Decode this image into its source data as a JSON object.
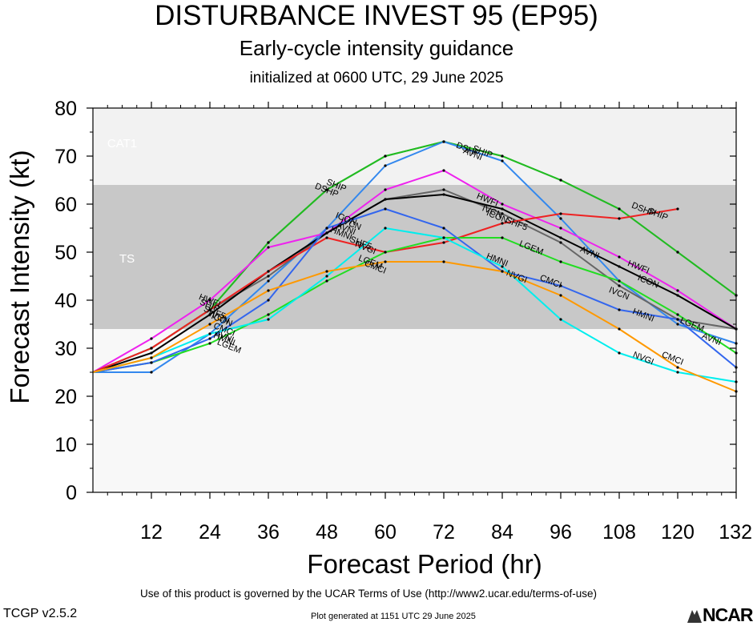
{
  "header": {
    "title": "DISTURBANCE INVEST 95 (EP95)",
    "subtitle": "Early-cycle intensity guidance",
    "initialized": "initialized at 0600 UTC, 29 June 2025"
  },
  "footer": {
    "terms": "Use of this product is governed by the UCAR Terms of Use (http://www2.ucar.edu/terms-of-use)",
    "version": "TCGP v2.5.2",
    "generated": "Plot generated at 1151 UTC   29 June 2025",
    "logo": "NCAR"
  },
  "chart_data": {
    "type": "line",
    "title": "DISTURBANCE INVEST 95 (EP95)",
    "xlabel": "Forecast Period (hr)",
    "ylabel": "Forecast Intensity (kt)",
    "xlim": [
      0,
      132
    ],
    "ylim": [
      0,
      80
    ],
    "xticks": [
      12,
      24,
      36,
      48,
      60,
      72,
      84,
      96,
      108,
      120,
      132
    ],
    "yticks": [
      0,
      10,
      20,
      30,
      40,
      50,
      60,
      70,
      80
    ],
    "bands": [
      {
        "label": "TS",
        "from": 34,
        "to": 64,
        "color": "#c8c8c8"
      },
      {
        "label": "CAT1",
        "from": 64,
        "to": 80,
        "color": "#f2f2f2"
      }
    ],
    "below_band_color": "#f8f8f8",
    "series": [
      {
        "name": "SHIP",
        "color": "#22bb22",
        "x": [
          0,
          12,
          24,
          36,
          48,
          60,
          72,
          84,
          96,
          108,
          120,
          132
        ],
        "y": [
          25,
          30,
          38,
          52,
          63,
          70,
          73,
          70,
          65,
          59,
          50,
          41
        ]
      },
      {
        "name": "DSHP",
        "color": "#22bb22",
        "x": [
          0,
          12,
          24,
          36,
          48,
          60,
          72,
          84,
          96,
          108,
          120,
          132
        ],
        "y": [
          25,
          30,
          38,
          52,
          63,
          70,
          73,
          70,
          65,
          59,
          50,
          41
        ]
      },
      {
        "name": "AVNI",
        "color": "#3388ee",
        "x": [
          0,
          12,
          24,
          36,
          48,
          60,
          72,
          84,
          96,
          108,
          120,
          132
        ],
        "y": [
          25,
          25,
          33,
          44,
          55,
          68,
          73,
          69,
          57,
          44,
          35,
          31
        ]
      },
      {
        "name": "HWFI",
        "color": "#ee22ee",
        "x": [
          0,
          12,
          24,
          36,
          48,
          60,
          72,
          84,
          96,
          108,
          120,
          132
        ],
        "y": [
          25,
          32,
          40,
          51,
          54,
          63,
          67,
          60,
          55,
          49,
          42,
          34
        ]
      },
      {
        "name": "IVCN",
        "color": "#666666",
        "x": [
          0,
          12,
          24,
          36,
          48,
          60,
          72,
          84,
          96,
          108,
          120,
          132
        ],
        "y": [
          25,
          30,
          38,
          45,
          54,
          61,
          63,
          58,
          52,
          43,
          36,
          34
        ]
      },
      {
        "name": "ICON",
        "color": "#000000",
        "x": [
          0,
          12,
          24,
          36,
          48,
          60,
          72,
          84,
          96,
          108,
          120,
          132
        ],
        "y": [
          25,
          29,
          37,
          46,
          54,
          61,
          62,
          59,
          53,
          47,
          41,
          34
        ]
      },
      {
        "name": "SHF5",
        "color": "#ee2222",
        "x": [
          0,
          12,
          24,
          36,
          48,
          60,
          72,
          84,
          96,
          108,
          120
        ],
        "y": [
          25,
          30,
          38,
          46,
          53,
          50,
          52,
          56,
          58,
          57,
          59
        ]
      },
      {
        "name": "LGEM",
        "color": "#22dd22",
        "x": [
          0,
          12,
          24,
          36,
          48,
          60,
          72,
          84,
          96,
          108,
          120,
          132
        ],
        "y": [
          25,
          27,
          31,
          37,
          44,
          50,
          53,
          53,
          48,
          44,
          37,
          29
        ]
      },
      {
        "name": "HMNI",
        "color": "#3366ee",
        "x": [
          0,
          12,
          24,
          36,
          48,
          60,
          72,
          84,
          96,
          108,
          120,
          132
        ],
        "y": [
          25,
          27,
          32,
          40,
          55,
          59,
          55,
          46,
          43,
          38,
          36,
          26
        ]
      },
      {
        "name": "NVGI",
        "color": "#00eeee",
        "x": [
          0,
          12,
          24,
          36,
          48,
          60,
          72,
          84,
          96,
          108,
          120,
          132
        ],
        "y": [
          25,
          28,
          33,
          36,
          45,
          55,
          53,
          47,
          36,
          29,
          25,
          23
        ]
      },
      {
        "name": "CMCI",
        "color": "#ff9900",
        "x": [
          0,
          12,
          24,
          36,
          48,
          60,
          72,
          84,
          96,
          108,
          120,
          132
        ],
        "y": [
          25,
          28,
          35,
          42,
          46,
          48,
          48,
          46,
          41,
          34,
          26,
          21
        ]
      }
    ],
    "labels": [
      {
        "text": "SHIP",
        "x": 50,
        "y": 64
      },
      {
        "text": "DSHP",
        "x": 48,
        "y": 63
      },
      {
        "text": "SHIP",
        "x": 80,
        "y": 71
      },
      {
        "text": "DSHP",
        "x": 77,
        "y": 71.5
      },
      {
        "text": "AVNI",
        "x": 78,
        "y": 70.5
      },
      {
        "text": "SHIP",
        "x": 116,
        "y": 58
      },
      {
        "text": "DSHP",
        "x": 113,
        "y": 59
      },
      {
        "text": "HWFI",
        "x": 81,
        "y": 61
      },
      {
        "text": "IVCN",
        "x": 82,
        "y": 58.5
      },
      {
        "text": "ICON",
        "x": 83,
        "y": 57.5
      },
      {
        "text": "SHF5",
        "x": 87,
        "y": 56
      },
      {
        "text": "LGEM",
        "x": 90,
        "y": 51
      },
      {
        "text": "AVNI",
        "x": 102,
        "y": 50
      },
      {
        "text": "HWFI",
        "x": 112,
        "y": 47
      },
      {
        "text": "ICON",
        "x": 114,
        "y": 44
      },
      {
        "text": "IVCN",
        "x": 108,
        "y": 41.5
      },
      {
        "text": "HMNI",
        "x": 83,
        "y": 48.5
      },
      {
        "text": "NVGI",
        "x": 87,
        "y": 45
      },
      {
        "text": "CMCI",
        "x": 94,
        "y": 44
      },
      {
        "text": "HMNI",
        "x": 113,
        "y": 37
      },
      {
        "text": "LGEM",
        "x": 123,
        "y": 35
      },
      {
        "text": "AVNI",
        "x": 127,
        "y": 32
      },
      {
        "text": "CMCI",
        "x": 119,
        "y": 28
      },
      {
        "text": "NVGI",
        "x": 113,
        "y": 28
      },
      {
        "text": "SHF5",
        "x": 55,
        "y": 52
      },
      {
        "text": "NVGI",
        "x": 56,
        "y": 51
      },
      {
        "text": "LGEM",
        "x": 57,
        "y": 48
      },
      {
        "text": "CMCI",
        "x": 58,
        "y": 47
      },
      {
        "text": "AVNI",
        "x": 52,
        "y": 55
      },
      {
        "text": "IVCN",
        "x": 53,
        "y": 56
      },
      {
        "text": "ICON",
        "x": 52,
        "y": 57
      },
      {
        "text": "HMNI",
        "x": 51,
        "y": 54
      },
      {
        "text": "HWFI",
        "x": 24,
        "y": 40
      },
      {
        "text": "SHIP",
        "x": 24,
        "y": 39
      },
      {
        "text": "SHF5",
        "x": 25,
        "y": 37.5
      },
      {
        "text": "IVCN",
        "x": 26,
        "y": 36.5
      },
      {
        "text": "ICON",
        "x": 26.5,
        "y": 36
      },
      {
        "text": "CMCI",
        "x": 27,
        "y": 34
      },
      {
        "text": "AVNI",
        "x": 27,
        "y": 32.5
      },
      {
        "text": "HMNI",
        "x": 27,
        "y": 32
      },
      {
        "text": "LGEM",
        "x": 28,
        "y": 30.5
      },
      {
        "text": "TS",
        "x": 7,
        "y": 48.5,
        "style": "band"
      },
      {
        "text": "CAT1",
        "x": 6,
        "y": 72.5,
        "style": "band"
      }
    ]
  }
}
